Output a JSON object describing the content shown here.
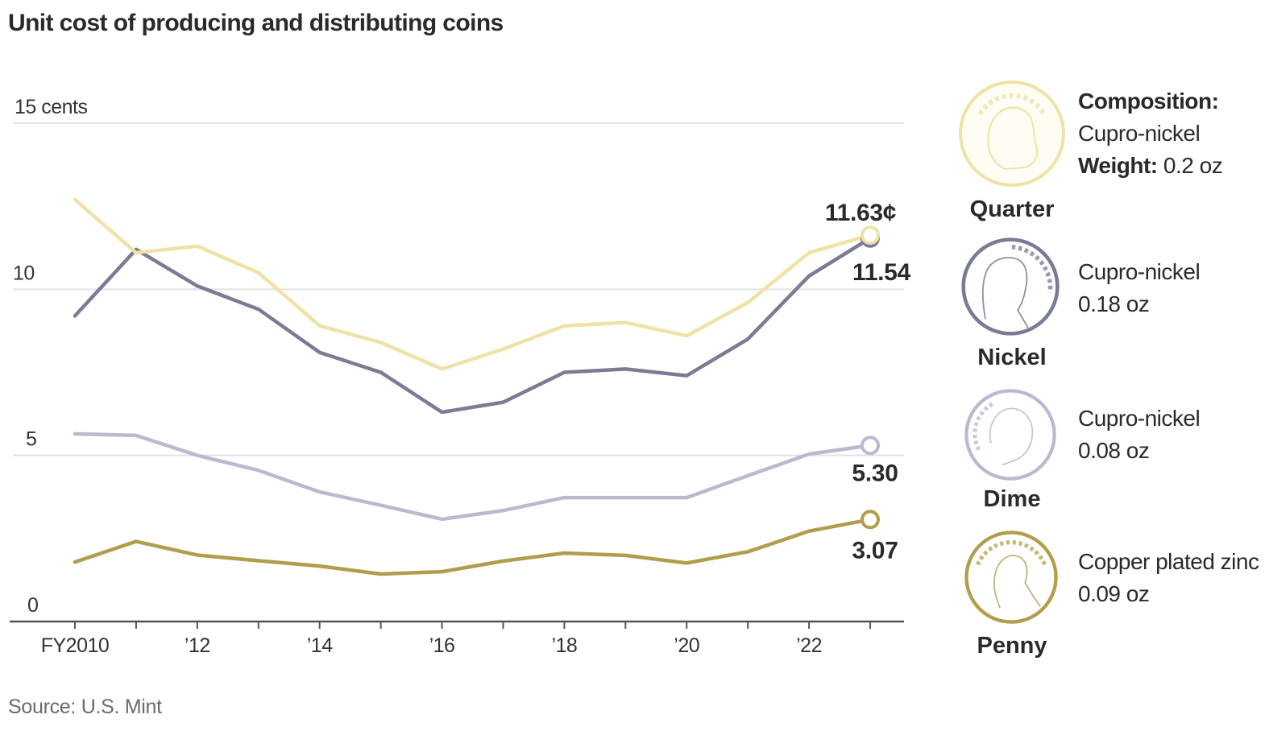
{
  "title": "Unit cost of producing and distributing coins",
  "source": "Source: U.S. Mint",
  "colors": {
    "quarter": "#efe2a6",
    "nickel": "#7a7b95",
    "dime": "#b9bacf",
    "penny": "#b19d4c",
    "gridline": "#e2e2e2",
    "axis": "#555555",
    "text": "#2a2a2a"
  },
  "chart_data": {
    "type": "line",
    "title": "Unit cost of producing and distributing coins",
    "xlabel": "",
    "ylabel": "cents",
    "ylim": [
      0,
      15
    ],
    "xlim": [
      2010,
      2023
    ],
    "grid": true,
    "y_ticks": [
      {
        "value": 0,
        "label": "0"
      },
      {
        "value": 5,
        "label": "5"
      },
      {
        "value": 10,
        "label": "10"
      },
      {
        "value": 15,
        "label": "15 cents"
      }
    ],
    "x_ticks": [
      {
        "value": 2010,
        "label": "FY2010"
      },
      {
        "value": 2011,
        "label": ""
      },
      {
        "value": 2012,
        "label": "’12"
      },
      {
        "value": 2013,
        "label": ""
      },
      {
        "value": 2014,
        "label": "’14"
      },
      {
        "value": 2015,
        "label": ""
      },
      {
        "value": 2016,
        "label": "’16"
      },
      {
        "value": 2017,
        "label": ""
      },
      {
        "value": 2018,
        "label": "’18"
      },
      {
        "value": 2019,
        "label": ""
      },
      {
        "value": 2020,
        "label": "’20"
      },
      {
        "value": 2021,
        "label": ""
      },
      {
        "value": 2022,
        "label": "’22"
      },
      {
        "value": 2023,
        "label": ""
      }
    ],
    "x": [
      2010,
      2011,
      2012,
      2013,
      2014,
      2015,
      2016,
      2017,
      2018,
      2019,
      2020,
      2021,
      2022,
      2023
    ],
    "series": [
      {
        "name": "Quarter",
        "key": "quarter",
        "values": [
          12.7,
          11.1,
          11.3,
          10.5,
          8.9,
          8.4,
          7.6,
          8.2,
          8.9,
          9.0,
          8.6,
          9.6,
          11.1,
          11.63
        ],
        "end_label": "11.63¢",
        "end_label_pos": "above"
      },
      {
        "name": "Nickel",
        "key": "nickel",
        "values": [
          9.2,
          11.2,
          10.1,
          9.4,
          8.1,
          7.5,
          6.3,
          6.6,
          7.5,
          7.6,
          7.4,
          8.5,
          10.4,
          11.54
        ],
        "end_label": "11.54",
        "end_label_pos": "below"
      },
      {
        "name": "Dime",
        "key": "dime",
        "values": [
          5.65,
          5.6,
          5.0,
          4.55,
          3.9,
          3.5,
          3.08,
          3.34,
          3.73,
          3.73,
          3.73,
          4.39,
          5.04,
          5.3
        ],
        "end_label": "5.30",
        "end_label_pos": "below"
      },
      {
        "name": "Penny",
        "key": "penny",
        "values": [
          1.79,
          2.41,
          2.0,
          1.83,
          1.67,
          1.43,
          1.5,
          1.82,
          2.06,
          1.99,
          1.76,
          2.1,
          2.72,
          3.07
        ],
        "end_label": "3.07",
        "end_label_pos": "below"
      }
    ]
  },
  "legend": [
    {
      "name": "Quarter",
      "key": "quarter",
      "icon": "quarter-coin-icon",
      "composition_label": "Composition:",
      "composition": "Cupro-nickel",
      "weight_label": "Weight:",
      "weight": "0.2 oz"
    },
    {
      "name": "Nickel",
      "key": "nickel",
      "icon": "nickel-coin-icon",
      "composition_label": "",
      "composition": "Cupro-nickel",
      "weight_label": "",
      "weight": "0.18 oz"
    },
    {
      "name": "Dime",
      "key": "dime",
      "icon": "dime-coin-icon",
      "composition_label": "",
      "composition": "Cupro-nickel",
      "weight_label": "",
      "weight": "0.08 oz"
    },
    {
      "name": "Penny",
      "key": "penny",
      "icon": "penny-coin-icon",
      "composition_label": "",
      "composition": "Copper plated zinc",
      "weight_label": "",
      "weight": "0.09 oz"
    }
  ]
}
